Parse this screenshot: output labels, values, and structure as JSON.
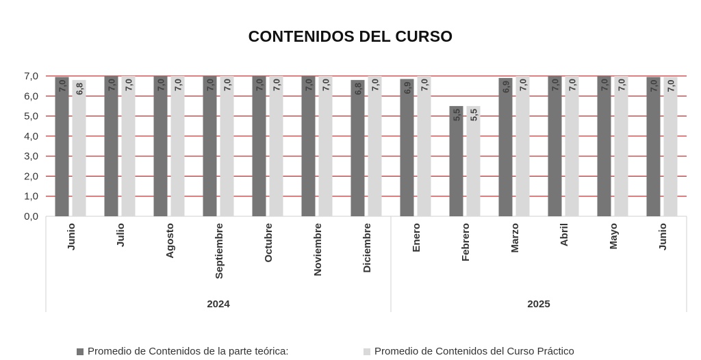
{
  "chart_data": {
    "type": "bar",
    "title": "CONTENIDOS DEL CURSO",
    "xlabel": "",
    "ylabel": "",
    "ylim": [
      0,
      7
    ],
    "yticks": [
      "0,0",
      "1,0",
      "2,0",
      "3,0",
      "4,0",
      "5,0",
      "6,0",
      "7,0"
    ],
    "grid": true,
    "legend_position": "bottom",
    "groups": [
      {
        "label": "2024",
        "categories": [
          "Junio",
          "Julio",
          "Agosto",
          "Septiembre",
          "Octubre",
          "Noviembre",
          "Diciembre"
        ]
      },
      {
        "label": "2025",
        "categories": [
          "Enero",
          "Febrero",
          "Marzo",
          "Abril",
          "Mayo",
          "Junio"
        ]
      }
    ],
    "categories": [
      "Junio",
      "Julio",
      "Agosto",
      "Septiembre",
      "Octubre",
      "Noviembre",
      "Diciembre",
      "Enero",
      "Febrero",
      "Marzo",
      "Abril",
      "Mayo",
      "Junio"
    ],
    "series": [
      {
        "name": "Promedio de Contenidos de la parte teórica:",
        "color": "#767676",
        "values": [
          6.95,
          7.0,
          7.0,
          7.0,
          7.0,
          7.0,
          6.8,
          6.85,
          5.5,
          6.9,
          7.0,
          7.0,
          6.95
        ],
        "labels": [
          "7,0",
          "7,0",
          "7,0",
          "7,0",
          "7,0",
          "7,0",
          "6,8",
          "6,9",
          "5,5",
          "6,9",
          "7,0",
          "7,0",
          "7,0"
        ]
      },
      {
        "name": "Promedio de Contenidos del Curso Práctico",
        "color": "#d9d9d9",
        "values": [
          6.8,
          7.0,
          7.0,
          7.0,
          7.0,
          7.0,
          7.0,
          7.0,
          5.5,
          7.0,
          7.0,
          7.0,
          6.95
        ],
        "labels": [
          "6,8",
          "7,0",
          "7,0",
          "7,0",
          "7,0",
          "7,0",
          "7,0",
          "7,0",
          "5,5",
          "7,0",
          "7,0",
          "7,0",
          "7,0"
        ]
      }
    ],
    "colors": {
      "grid": "#c00000",
      "axis": "#d0d0d0",
      "text": "#333333"
    }
  }
}
